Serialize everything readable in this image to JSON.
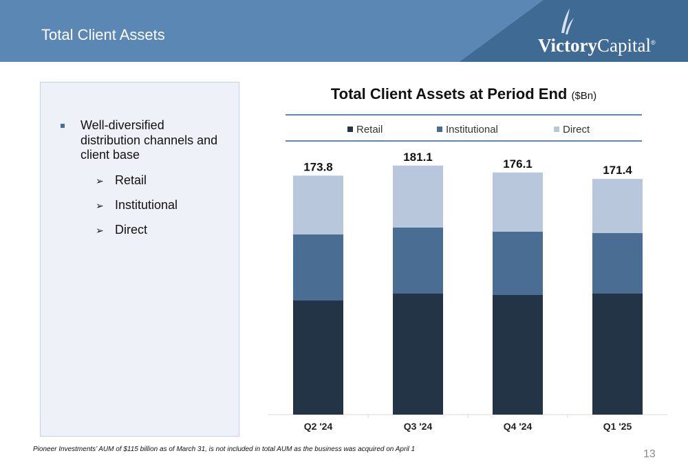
{
  "header": {
    "title": "Total Client Assets"
  },
  "logo": {
    "bold": "Victory",
    "light": "Capital",
    "mark": "®"
  },
  "sidebar": {
    "bullet": "Well-diversified distribution channels and client base",
    "subitems": [
      "Retail",
      "Institutional",
      "Direct"
    ]
  },
  "chart_title": {
    "main": "Total Client Assets at Period End",
    "unit": "($Bn)"
  },
  "colors": {
    "retail": "#243447",
    "institutional": "#4a6d93",
    "direct": "#b8c7dc",
    "header": "#5b87b4"
  },
  "chart_data": {
    "type": "bar",
    "stacked": true,
    "categories": [
      "Q2 '24",
      "Q3 '24",
      "Q4 '24",
      "Q1 '25"
    ],
    "series": [
      {
        "name": "Retail",
        "values": [
          83,
          88,
          87,
          88
        ]
      },
      {
        "name": "Institutional",
        "values": [
          48,
          48,
          46,
          44
        ]
      },
      {
        "name": "Direct",
        "values": [
          42.8,
          45.1,
          43.1,
          39.4
        ]
      }
    ],
    "totals": [
      "173.8",
      "181.1",
      "176.1",
      "171.4"
    ],
    "ylim": [
      0,
      190
    ],
    "legend": "top",
    "grid": false
  },
  "footnote": "Pioneer Investments’ AUM of $115 billion as of March 31, is not included in total AUM as the business was acquired on April 1",
  "page_number": "13"
}
